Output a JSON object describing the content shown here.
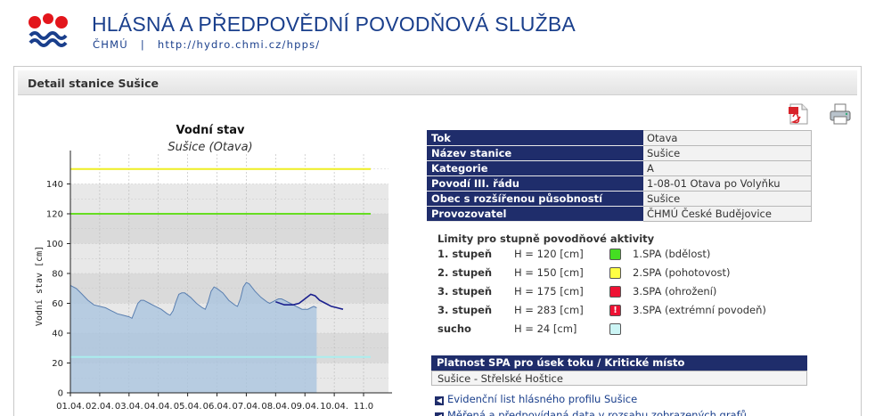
{
  "header": {
    "title": "HLÁSNÁ A PŘEDPOVĚDNÍ POVODŇOVÁ SLUŽBA",
    "org": "ČHMÚ",
    "separator": "|",
    "url": "http://hydro.chmi.cz/hpps/"
  },
  "panel": {
    "title": "Detail stanice Sušice"
  },
  "icons": {
    "pdf": "pdf-icon",
    "print": "printer-icon"
  },
  "station": {
    "rows": [
      {
        "label": "Tok",
        "value": "Otava"
      },
      {
        "label": "Název stanice",
        "value": "Sušice"
      },
      {
        "label": "Kategorie",
        "value": "A"
      },
      {
        "label": "Povodí III. řádu",
        "value": "1-08-01 Otava po Volyňku"
      },
      {
        "label": "Obec s rozšířenou působností",
        "value": "Sušice"
      },
      {
        "label": "Provozovatel",
        "value": "ČHMÚ České Budějovice"
      }
    ]
  },
  "limits": {
    "title": "Limity pro stupně povodňové aktivity",
    "rows": [
      {
        "level": "1. stupeň",
        "h": "H = 120 [cm]",
        "color": "#44dd22",
        "desc": "1.SPA (bdělost)",
        "mark": ""
      },
      {
        "level": "2. stupeň",
        "h": "H = 150 [cm]",
        "color": "#ffff44",
        "desc": "2.SPA (pohotovost)",
        "mark": ""
      },
      {
        "level": "3. stupeň",
        "h": "H = 175 [cm]",
        "color": "#ee1133",
        "desc": "3.SPA (ohrožení)",
        "mark": ""
      },
      {
        "level": "3. stupeň",
        "h": "H = 283 [cm]",
        "color": "#ee1133",
        "desc": "3.SPA (extrémní povodeň)",
        "mark": "!"
      },
      {
        "level": "sucho",
        "h": "H = 24 [cm]",
        "color": "#ccf5f5",
        "desc": "",
        "mark": ""
      }
    ]
  },
  "spa": {
    "header": "Platnost SPA pro úsek toku / Kritické místo",
    "value": "Sušice - Střelské Hoštice"
  },
  "links": [
    "Evidenční list hlásného profilu Sušice",
    "Měřená a předpovídaná data v rozsahu zobrazených grafů"
  ],
  "chart_data": {
    "type": "area",
    "title": "Vodní stav",
    "subtitle": "Sušice (Otava)",
    "ylabel": "Vodní stav [cm]",
    "ylim": [
      0,
      160
    ],
    "yticks": [
      0,
      20,
      40,
      60,
      80,
      100,
      120,
      140
    ],
    "xlim": [
      0,
      10.85
    ],
    "xticks": [
      "01.04.",
      "02.04.",
      "03.04.",
      "04.04.",
      "05.04.",
      "06.04.",
      "07.04.",
      "08.04.",
      "09.04.",
      "10.04.",
      "11.0"
    ],
    "threshold_lines": [
      {
        "value": 150,
        "color": "#eeee22"
      },
      {
        "value": 120,
        "color": "#66dd22"
      },
      {
        "value": 24,
        "color": "#aaeeee"
      }
    ],
    "series": [
      {
        "kind": "measured",
        "color": "#5a7fb0",
        "points": [
          [
            0,
            72
          ],
          [
            0.2,
            70
          ],
          [
            0.4,
            66
          ],
          [
            0.6,
            62
          ],
          [
            0.8,
            59
          ],
          [
            1.0,
            58
          ],
          [
            1.2,
            57
          ],
          [
            1.4,
            55
          ],
          [
            1.6,
            53
          ],
          [
            1.8,
            52
          ],
          [
            2.0,
            51
          ],
          [
            2.1,
            50
          ],
          [
            2.2,
            55
          ],
          [
            2.3,
            60
          ],
          [
            2.4,
            62
          ],
          [
            2.5,
            62
          ],
          [
            2.7,
            60
          ],
          [
            2.9,
            58
          ],
          [
            3.1,
            56
          ],
          [
            3.3,
            53
          ],
          [
            3.4,
            52
          ],
          [
            3.5,
            55
          ],
          [
            3.6,
            61
          ],
          [
            3.7,
            66
          ],
          [
            3.8,
            67
          ],
          [
            3.9,
            67
          ],
          [
            4.1,
            64
          ],
          [
            4.3,
            60
          ],
          [
            4.5,
            57
          ],
          [
            4.6,
            56
          ],
          [
            4.7,
            61
          ],
          [
            4.8,
            68
          ],
          [
            4.9,
            71
          ],
          [
            5.0,
            70
          ],
          [
            5.2,
            67
          ],
          [
            5.4,
            62
          ],
          [
            5.6,
            59
          ],
          [
            5.7,
            58
          ],
          [
            5.8,
            63
          ],
          [
            5.9,
            71
          ],
          [
            6.0,
            74
          ],
          [
            6.1,
            73
          ],
          [
            6.3,
            68
          ],
          [
            6.5,
            64
          ],
          [
            6.7,
            61
          ],
          [
            6.8,
            60
          ],
          [
            6.9,
            61
          ],
          [
            7.0,
            62
          ],
          [
            7.1,
            63
          ],
          [
            7.2,
            63
          ],
          [
            7.3,
            62
          ],
          [
            7.4,
            61
          ],
          [
            7.5,
            60
          ],
          [
            7.6,
            59
          ],
          [
            7.7,
            58
          ],
          [
            7.8,
            57
          ],
          [
            7.9,
            56
          ],
          [
            8.0,
            56
          ],
          [
            8.1,
            56
          ],
          [
            8.2,
            57
          ],
          [
            8.3,
            58
          ],
          [
            8.4,
            57
          ]
        ]
      },
      {
        "kind": "forecast",
        "color": "#1a1f8e",
        "points": [
          [
            7.0,
            61
          ],
          [
            7.3,
            59
          ],
          [
            7.6,
            59
          ],
          [
            7.8,
            60
          ],
          [
            8.0,
            63
          ],
          [
            8.2,
            66
          ],
          [
            8.35,
            65
          ],
          [
            8.5,
            62
          ],
          [
            8.7,
            60
          ],
          [
            8.9,
            58
          ],
          [
            9.1,
            57
          ],
          [
            9.3,
            56
          ]
        ]
      }
    ]
  }
}
